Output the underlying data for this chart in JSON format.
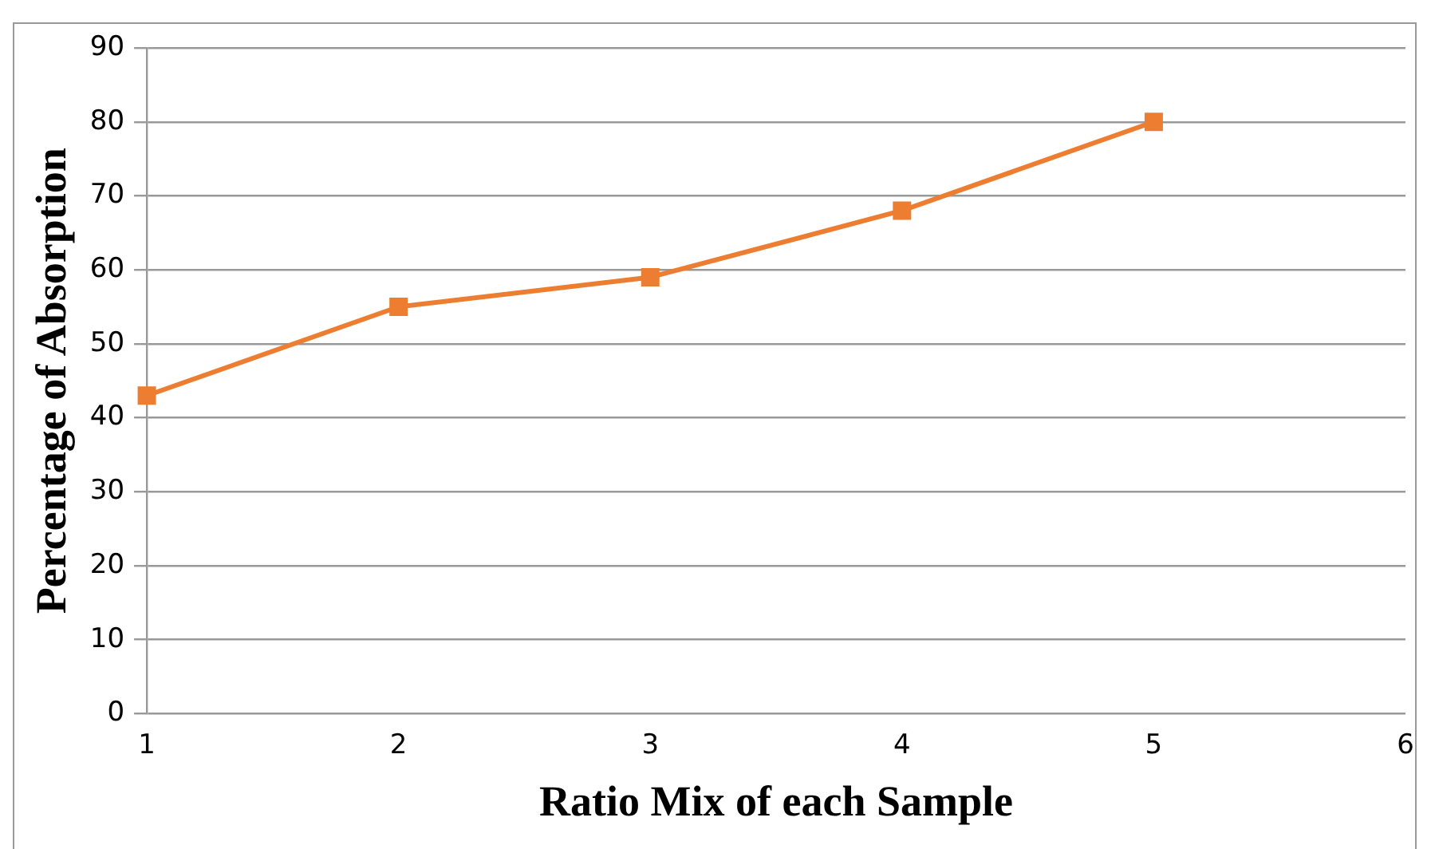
{
  "chart_data": {
    "type": "line",
    "xlabel": "Ratio Mix of each Sample",
    "ylabel": "Percentage of Absorption",
    "categories": [
      "1",
      "2",
      "3",
      "4",
      "5",
      "6"
    ],
    "series": [
      {
        "color": "#ed7d31",
        "values": [
          43,
          55,
          59,
          68,
          80,
          null
        ]
      }
    ],
    "ylim": [
      0,
      90
    ],
    "yticks": [
      0,
      10,
      20,
      30,
      40,
      50,
      60,
      70,
      80,
      90
    ],
    "grid": "y",
    "legend": false,
    "marker": "square",
    "line_style": "solid"
  }
}
